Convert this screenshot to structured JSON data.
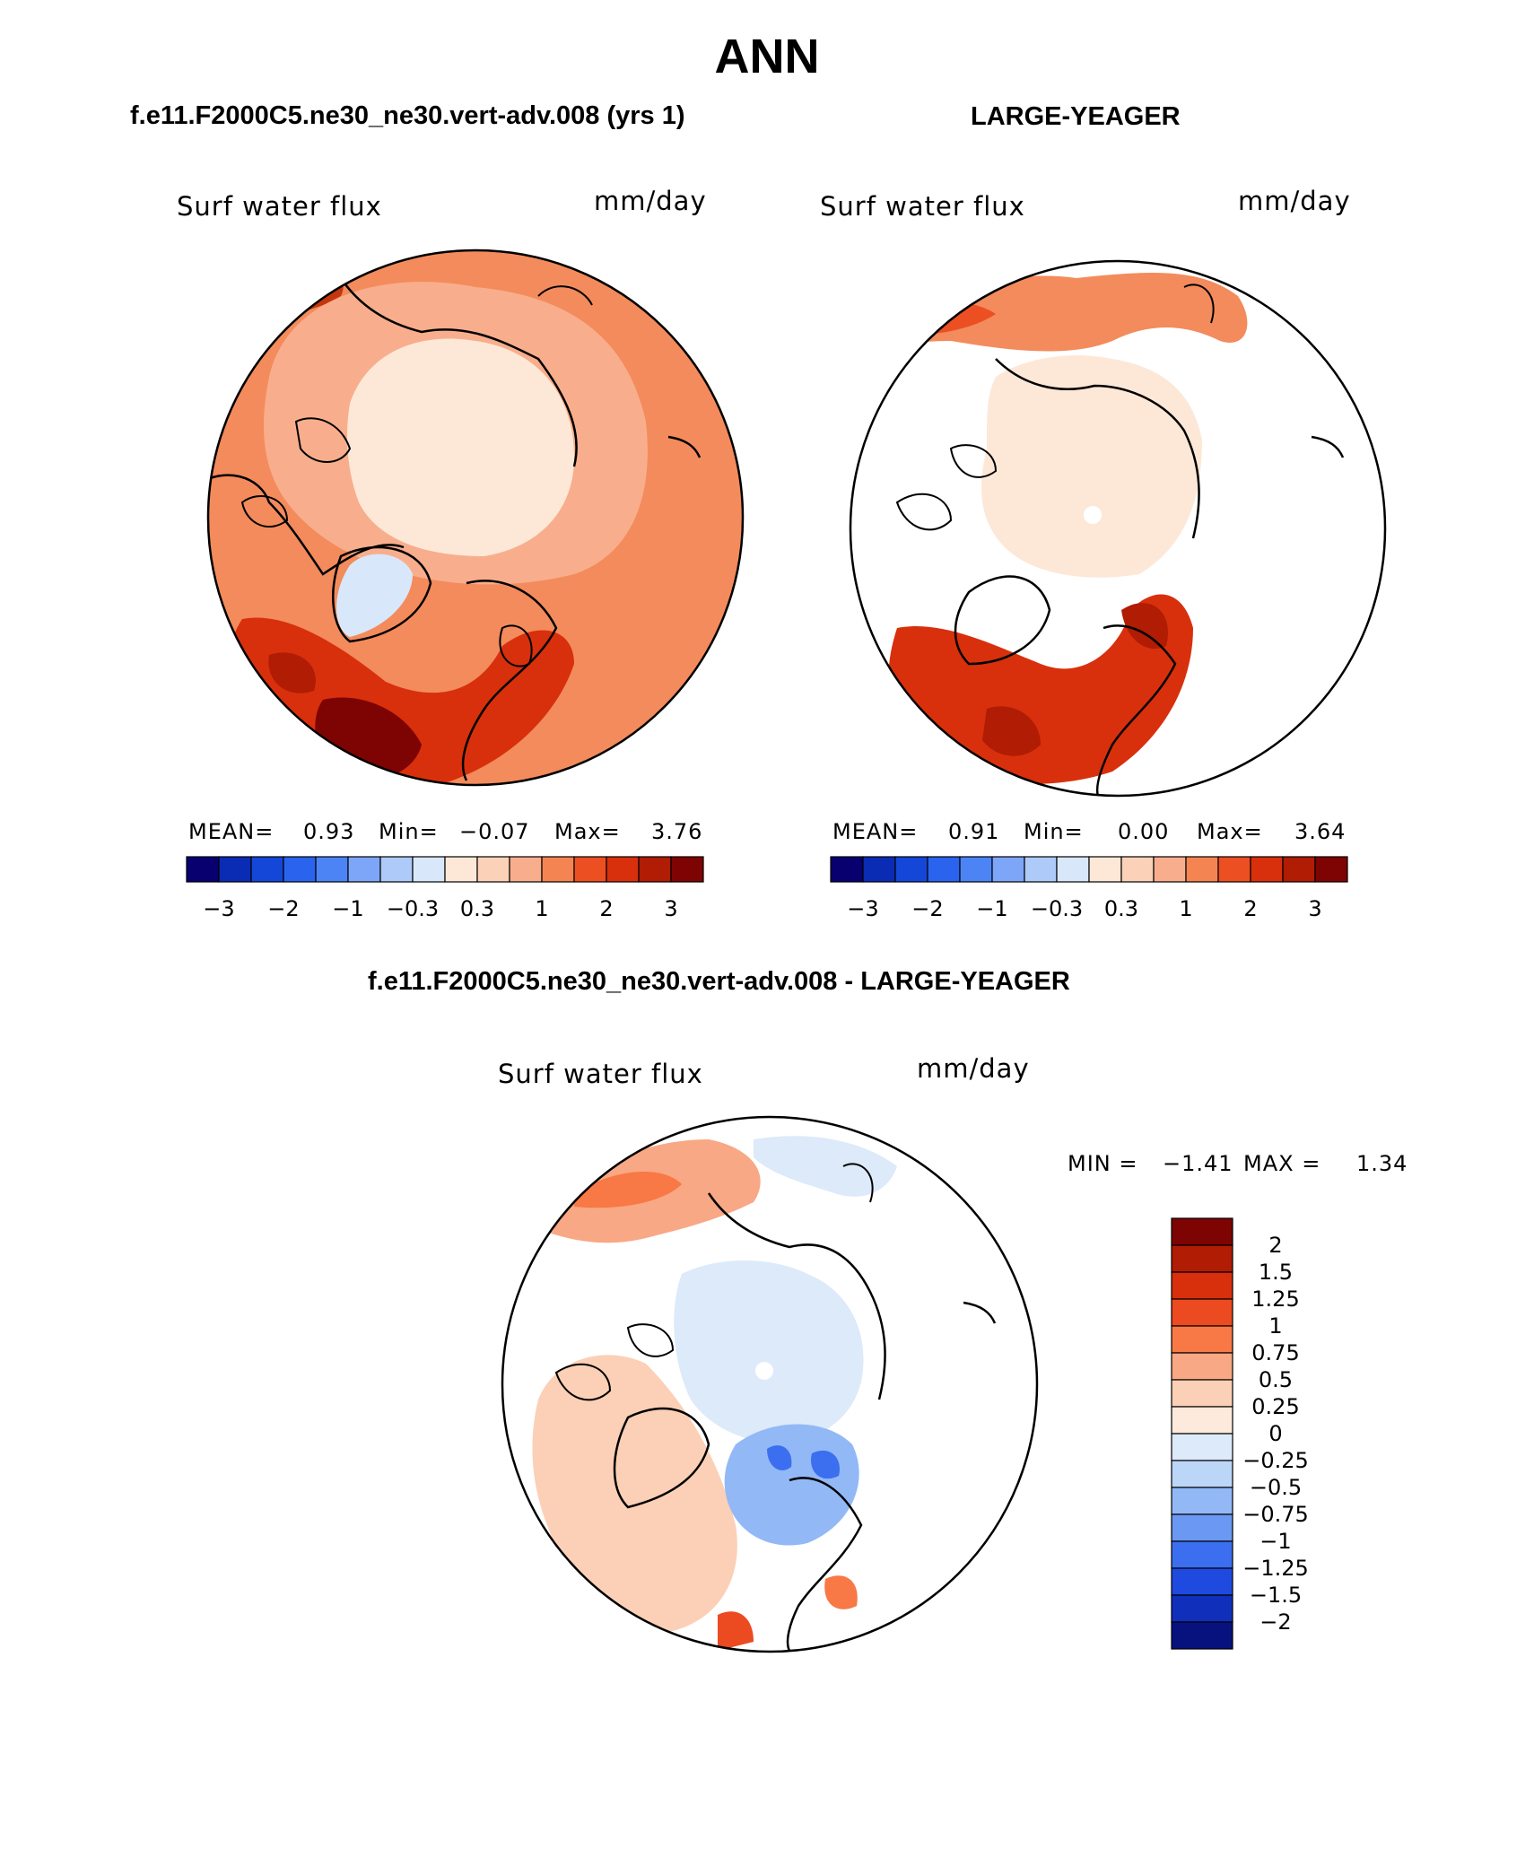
{
  "title": "ANN",
  "panels": [
    {
      "case_title": "f.e11.F2000C5.ne30_ne30.vert-adv.008 (yrs 1)",
      "variable": "Surf water flux",
      "units": "mm/day",
      "stats": {
        "mean_label": "MEAN=",
        "mean": "0.93",
        "min_label": "Min=",
        "min": "−0.07",
        "max_label": "Max=",
        "max": "3.76"
      }
    },
    {
      "case_title": "LARGE-YEAGER",
      "variable": "Surf water flux",
      "units": "mm/day",
      "stats": {
        "mean_label": "MEAN=",
        "mean": "0.91",
        "min_label": "Min=",
        "min": "0.00",
        "max_label": "Max=",
        "max": "3.64"
      }
    }
  ],
  "abs_colorbar": {
    "colors": [
      "#08006e",
      "#0a2cb4",
      "#1446d8",
      "#2a64ee",
      "#4c84f6",
      "#7ea6f8",
      "#aecaf8",
      "#d8e8fa",
      "#fde8d8",
      "#fbd2b8",
      "#f8ae8c",
      "#f48452",
      "#ec5022",
      "#d8300c",
      "#b01c04",
      "#7e0404"
    ],
    "labels": [
      "−3",
      "−2",
      "−1",
      "−0.3",
      "0.3",
      "1",
      "2",
      "3"
    ]
  },
  "difference": {
    "title": "f.e11.F2000C5.ne30_ne30.vert-adv.008 - LARGE-YEAGER",
    "variable": "Surf water flux",
    "units": "mm/day",
    "min_label": "MIN =",
    "min": "−1.41",
    "max_label": "MAX =",
    "max": "1.34",
    "colorbar": {
      "colors": [
        "#7e0404",
        "#b01c04",
        "#d8300c",
        "#ec4a20",
        "#f87846",
        "#f8a884",
        "#fbd0b6",
        "#fdeadc",
        "#dceafa",
        "#bcd6f8",
        "#92b8f6",
        "#6a98f2",
        "#3c6ef0",
        "#1e4ae0",
        "#1030bc",
        "#08127e"
      ],
      "labels": [
        "2",
        "1.5",
        "1.25",
        "1",
        "0.75",
        "0.5",
        "0.25",
        "0",
        "−0.25",
        "−0.5",
        "−0.75",
        "−1",
        "−1.25",
        "−1.5",
        "−2"
      ]
    }
  }
}
